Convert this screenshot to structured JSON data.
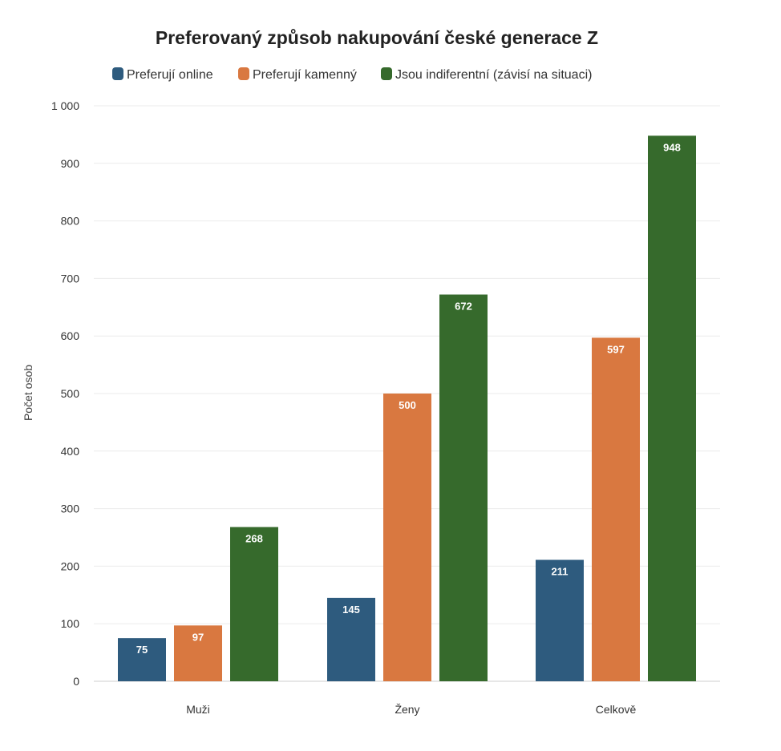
{
  "chart_data": {
    "type": "bar",
    "title": "Preferovaný způsob nakupování české generace Z",
    "xlabel": "",
    "ylabel": "Počet osob",
    "categories": [
      "Muži",
      "Ženy",
      "Celkově"
    ],
    "series": [
      {
        "name": "Preferují online",
        "color": "#2e5b7e",
        "values": [
          75,
          145,
          211
        ]
      },
      {
        "name": "Preferují kamenný",
        "color": "#d97840",
        "values": [
          97,
          500,
          597
        ]
      },
      {
        "name": "Jsou indiferentní (závisí na situaci)",
        "color": "#366a2c",
        "values": [
          268,
          672,
          948
        ]
      }
    ],
    "ylim": [
      0,
      1000
    ],
    "yticks": [
      0,
      100,
      200,
      300,
      400,
      500,
      600,
      700,
      800,
      900,
      1000
    ],
    "ytick_labels": [
      "0",
      "100",
      "200",
      "300",
      "400",
      "500",
      "600",
      "700",
      "800",
      "900",
      "1 000"
    ],
    "grid": true,
    "legend_position": "top",
    "data_labels": true
  }
}
